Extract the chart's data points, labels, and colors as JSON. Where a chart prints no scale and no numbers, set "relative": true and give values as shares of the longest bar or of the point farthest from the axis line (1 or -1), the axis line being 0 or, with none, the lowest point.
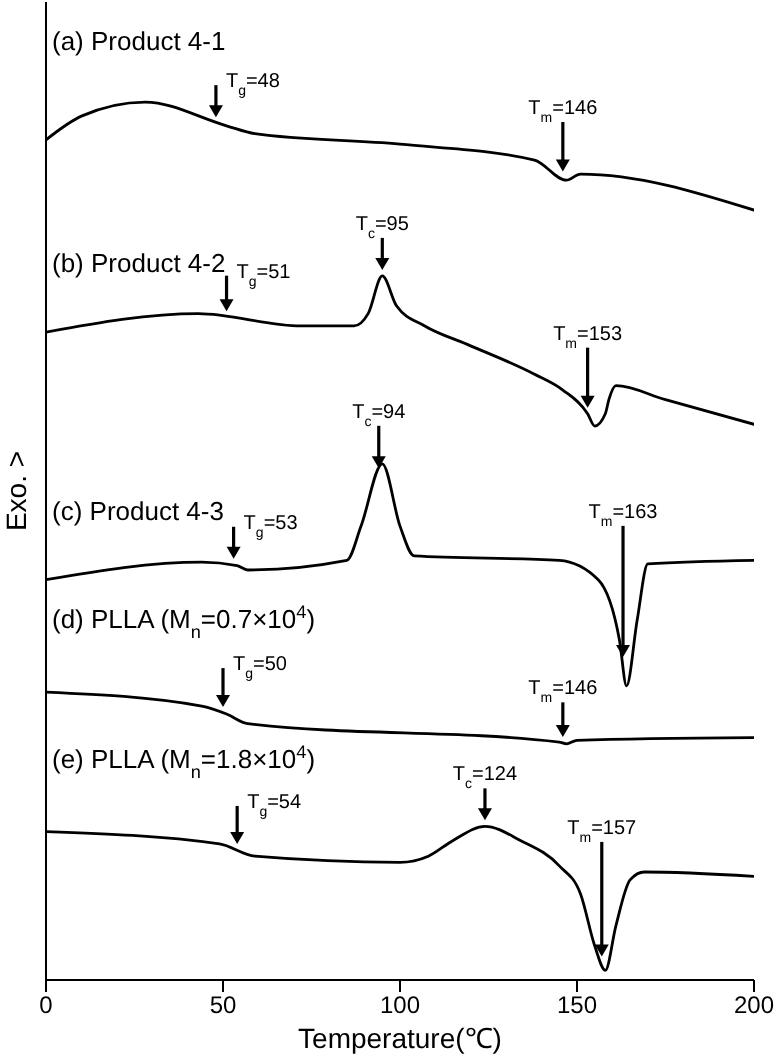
{
  "chart_data": {
    "type": "line",
    "relative": true,
    "xlabel": "Temperature(℃)",
    "ylabel": "Exo. >",
    "xlim": [
      0,
      200
    ],
    "xticks": [
      0,
      50,
      100,
      150,
      200
    ],
    "tick_labels": "x",
    "series": [
      {
        "name": "(a) Product 4-1",
        "color": "#000000",
        "x": [
          0,
          10,
          28,
          51,
          59,
          100,
          138,
          147,
          151,
          200
        ],
        "values": [
          0.957,
          0.984,
          1,
          0.973,
          0.964,
          0.952,
          0.934,
          0.911,
          0.918,
          0.877
        ]
      },
      {
        "name": "(b) Product 4-2",
        "color": "#000000",
        "x": [
          0,
          43,
          72,
          87,
          91,
          95,
          99,
          107,
          119,
          138,
          146,
          153,
          155,
          158,
          159,
          161,
          175,
          200
        ],
        "values": [
          0.738,
          0.759,
          0.745,
          0.745,
          0.759,
          0.802,
          0.768,
          0.745,
          0.724,
          0.69,
          0.672,
          0.645,
          0.631,
          0.645,
          0.661,
          0.677,
          0.661,
          0.633
        ]
      },
      {
        "name": "(c) Product 4-3",
        "color": "#000000",
        "x": [
          0,
          44,
          54,
          57,
          85,
          89,
          95,
          100,
          104,
          145,
          156,
          162,
          164,
          167,
          170,
          200
        ],
        "values": [
          0.456,
          0.476,
          0.472,
          0.467,
          0.478,
          0.517,
          0.588,
          0.517,
          0.483,
          0.478,
          0.456,
          0.387,
          0.335,
          0.41,
          0.474,
          0.478
        ]
      },
      {
        "name": "(d) PLLA (M$_{n}$=0.7×10$^{4}$)",
        "color": "#000000",
        "x": [
          0,
          44,
          51,
          57,
          145,
          147,
          150,
          200
        ],
        "values": [
          0.328,
          0.312,
          0.303,
          0.292,
          0.271,
          0.269,
          0.273,
          0.276
        ]
      },
      {
        "name": "(e) PLLA (M$_{n}$=1.8×10$^{4}$)",
        "color": "#000000",
        "x": [
          0,
          49,
          59,
          100,
          108,
          115,
          124,
          134,
          145,
          151,
          155,
          158,
          161,
          165,
          169,
          200
        ],
        "values": [
          0.169,
          0.155,
          0.141,
          0.134,
          0.141,
          0.159,
          0.175,
          0.159,
          0.13,
          0.098,
          0.039,
          0.011,
          0.062,
          0.114,
          0.123,
          0.118
        ]
      }
    ],
    "annotations": [
      {
        "text": "T$_{g}$=48",
        "x": 48,
        "y": 0.976
      },
      {
        "text": "T$_{m}$=146",
        "x": 146,
        "y": 0.914
      },
      {
        "text": "T$_{g}$=51",
        "x": 51,
        "y": 0.755
      },
      {
        "text": "T$_{c}$=95",
        "x": 95,
        "y": 0.802
      },
      {
        "text": "T$_{m}$=153",
        "x": 153,
        "y": 0.645
      },
      {
        "text": "T$_{g}$=53",
        "x": 53,
        "y": 0.473
      },
      {
        "text": "T$_{c}$=94",
        "x": 94,
        "y": 0.576
      },
      {
        "text": "T$_{m}$=163",
        "x": 163,
        "y": 0.361
      },
      {
        "text": "T$_{g}$=50",
        "x": 50,
        "y": 0.304
      },
      {
        "text": "T$_{m}$=146",
        "x": 146,
        "y": 0.27
      },
      {
        "text": "T$_{g}$=54",
        "x": 54,
        "y": 0.148
      },
      {
        "text": "T$_{c}$=124",
        "x": 124,
        "y": 0.175
      },
      {
        "text": "T$_{m}$=157",
        "x": 157,
        "y": 0.02
      }
    ]
  }
}
